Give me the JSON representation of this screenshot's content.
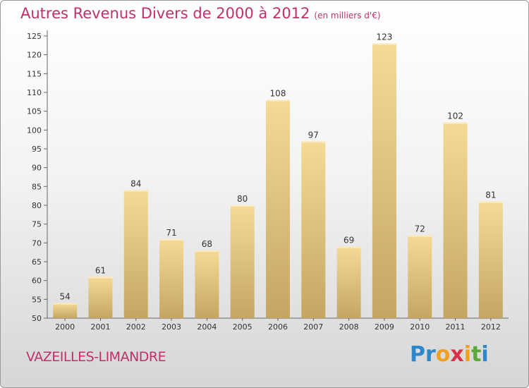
{
  "header": {
    "title": "Autres Revenus Divers de 2000 à 2012",
    "subtitle": "(en milliers d'€)"
  },
  "footer": {
    "commune": "VAZEILLES-LIMANDRE",
    "logo_letters": [
      {
        "ch": "P",
        "color": "#2f86c8"
      },
      {
        "ch": "r",
        "color": "#2f86c8"
      },
      {
        "ch": "o",
        "color": "#f0a020"
      },
      {
        "ch": "x",
        "color": "#d8324a"
      },
      {
        "ch": "i",
        "color": "#f0a020"
      },
      {
        "ch": "t",
        "color": "#5aa83a"
      },
      {
        "ch": "i",
        "color": "#2f86c8"
      }
    ]
  },
  "colors": {
    "title": "#c0306a",
    "bar_light": "#f5da95",
    "bar_dark": "#c4a662",
    "bar_top": "#faeabd"
  },
  "chart_data": {
    "type": "bar",
    "title": "Autres Revenus Divers de 2000 à 2012",
    "subtitle": "(en milliers d'€)",
    "categories": [
      "2000",
      "2001",
      "2002",
      "2003",
      "2004",
      "2005",
      "2006",
      "2007",
      "2008",
      "2009",
      "2010",
      "2011",
      "2012"
    ],
    "values": [
      54,
      61,
      84,
      71,
      68,
      80,
      108,
      97,
      69,
      123,
      72,
      102,
      81
    ],
    "ylim": [
      50,
      125
    ],
    "yticks": [
      50,
      55,
      60,
      65,
      70,
      75,
      80,
      85,
      90,
      95,
      100,
      105,
      110,
      115,
      120,
      125
    ],
    "grid": false,
    "data_labels": true
  }
}
